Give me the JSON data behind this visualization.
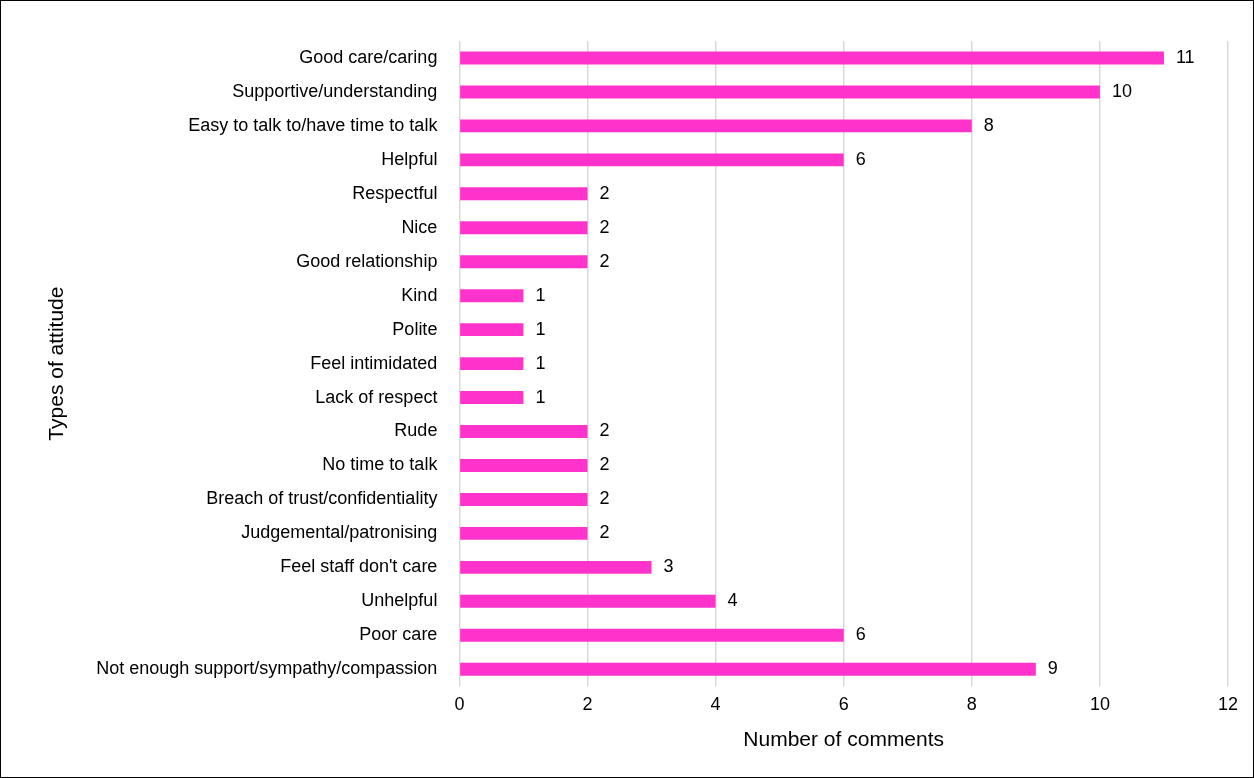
{
  "chart_data": {
    "type": "bar",
    "orientation": "horizontal",
    "xlabel": "Number of comments",
    "ylabel": "Types of attitude",
    "categories": [
      "Good care/caring",
      "Supportive/understanding",
      "Easy to talk to/have time to talk",
      "Helpful",
      "Respectful",
      "Nice",
      "Good relationship",
      "Kind",
      "Polite",
      "Feel intimidated",
      "Lack of respect",
      "Rude",
      "No time to talk",
      "Breach of trust/confidentiality",
      "Judgemental/patronising",
      "Feel staff don't care",
      "Unhelpful",
      "Poor care",
      "Not enough support/sympathy/compassion"
    ],
    "values": [
      11,
      10,
      8,
      6,
      2,
      2,
      2,
      1,
      1,
      1,
      1,
      2,
      2,
      2,
      2,
      3,
      4,
      6,
      9
    ],
    "color": "#ff33cc",
    "xlim": [
      0,
      12
    ],
    "xticks": [
      0,
      2,
      4,
      6,
      8,
      10,
      12
    ],
    "grid": "x",
    "data_labels": true,
    "legend": false
  }
}
